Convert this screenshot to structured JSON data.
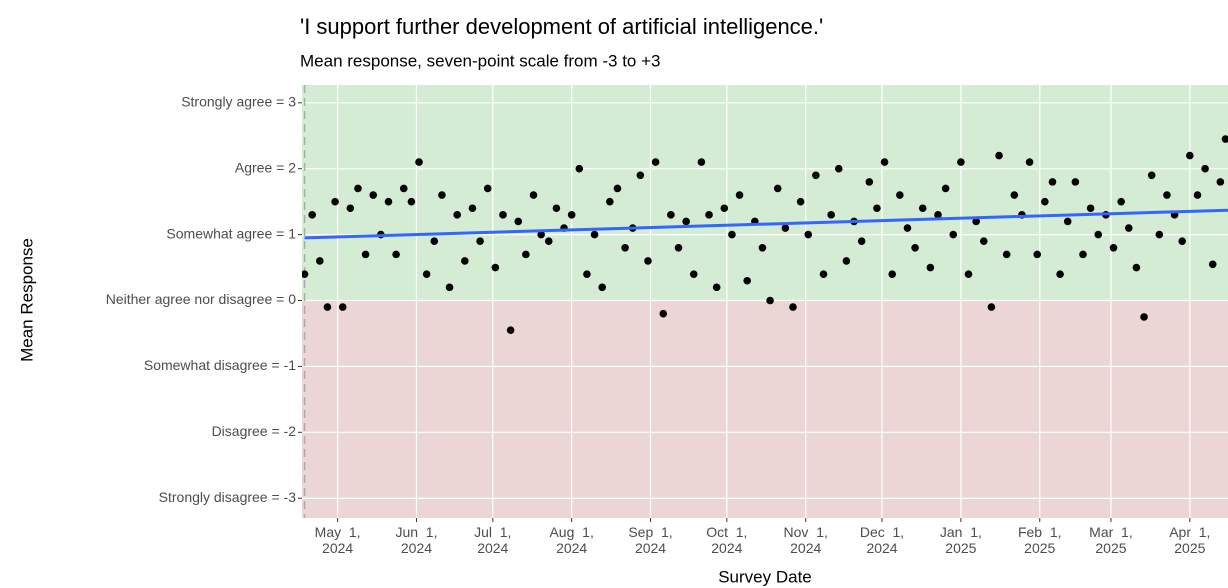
{
  "chart_data": {
    "type": "scatter",
    "title": "'I support further development of artificial intelligence.'",
    "subtitle": "Mean response, seven-point scale from -3 to +3",
    "x_label": "Survey Date",
    "y_label": "Mean Response",
    "xlim": [
      "2024-04-17",
      "2025-04-16"
    ],
    "xticks": [
      {
        "value": "2024-05-01",
        "label": "May  1,\n2024"
      },
      {
        "value": "2024-06-01",
        "label": "Jun  1,\n2024"
      },
      {
        "value": "2024-07-01",
        "label": "Jul  1,\n2024"
      },
      {
        "value": "2024-08-01",
        "label": "Aug  1,\n2024"
      },
      {
        "value": "2024-09-01",
        "label": "Sep  1,\n2024"
      },
      {
        "value": "2024-10-01",
        "label": "Oct  1,\n2024"
      },
      {
        "value": "2024-11-01",
        "label": "Nov  1,\n2024"
      },
      {
        "value": "2024-12-01",
        "label": "Dec  1,\n2024"
      },
      {
        "value": "2025-01-01",
        "label": "Jan  1,\n2025"
      },
      {
        "value": "2025-02-01",
        "label": "Feb  1,\n2025"
      },
      {
        "value": "2025-03-01",
        "label": "Mar  1,\n2025"
      },
      {
        "value": "2025-04-01",
        "label": "Apr  1,\n2025"
      }
    ],
    "ylim": [
      -3.3,
      3.27
    ],
    "yticks": [
      {
        "value": 3,
        "label": "Strongly agree = 3"
      },
      {
        "value": 2,
        "label": "Agree = 2"
      },
      {
        "value": 1,
        "label": "Somewhat agree = 1"
      },
      {
        "value": 0,
        "label": "Neither agree nor disagree = 0"
      },
      {
        "value": -1,
        "label": "Somewhat disagree = -1"
      },
      {
        "value": -2,
        "label": "Disagree = -2"
      },
      {
        "value": -3,
        "label": "Strongly disagree = -3"
      }
    ],
    "grid": true,
    "threshold": 0,
    "above_color": "#d5ecd4",
    "below_color": "#ecd5d5",
    "vline": "2024-04-18",
    "color": "#000000",
    "x": [
      "2024-04-18",
      "2024-04-21",
      "2024-04-24",
      "2024-04-27",
      "2024-04-30",
      "2024-05-03",
      "2024-05-06",
      "2024-05-09",
      "2024-05-12",
      "2024-05-15",
      "2024-05-18",
      "2024-05-21",
      "2024-05-24",
      "2024-05-27",
      "2024-05-30",
      "2024-06-02",
      "2024-06-05",
      "2024-06-08",
      "2024-06-11",
      "2024-06-14",
      "2024-06-17",
      "2024-06-20",
      "2024-06-23",
      "2024-06-26",
      "2024-06-29",
      "2024-07-02",
      "2024-07-05",
      "2024-07-08",
      "2024-07-11",
      "2024-07-14",
      "2024-07-17",
      "2024-07-20",
      "2024-07-23",
      "2024-07-26",
      "2024-07-29",
      "2024-08-01",
      "2024-08-04",
      "2024-08-07",
      "2024-08-10",
      "2024-08-13",
      "2024-08-16",
      "2024-08-19",
      "2024-08-22",
      "2024-08-25",
      "2024-08-28",
      "2024-08-31",
      "2024-09-03",
      "2024-09-06",
      "2024-09-09",
      "2024-09-12",
      "2024-09-15",
      "2024-09-18",
      "2024-09-21",
      "2024-09-24",
      "2024-09-27",
      "2024-09-30",
      "2024-10-03",
      "2024-10-06",
      "2024-10-09",
      "2024-10-12",
      "2024-10-15",
      "2024-10-18",
      "2024-10-21",
      "2024-10-24",
      "2024-10-27",
      "2024-10-30",
      "2024-11-02",
      "2024-11-05",
      "2024-11-08",
      "2024-11-11",
      "2024-11-14",
      "2024-11-17",
      "2024-11-20",
      "2024-11-23",
      "2024-11-26",
      "2024-11-29",
      "2024-12-02",
      "2024-12-05",
      "2024-12-08",
      "2024-12-11",
      "2024-12-14",
      "2024-12-17",
      "2024-12-20",
      "2024-12-23",
      "2024-12-26",
      "2024-12-29",
      "2025-01-01",
      "2025-01-04",
      "2025-01-07",
      "2025-01-10",
      "2025-01-13",
      "2025-01-16",
      "2025-01-19",
      "2025-01-22",
      "2025-01-25",
      "2025-01-28",
      "2025-01-31",
      "2025-02-03",
      "2025-02-06",
      "2025-02-09",
      "2025-02-12",
      "2025-02-15",
      "2025-02-18",
      "2025-02-21",
      "2025-02-24",
      "2025-02-27",
      "2025-03-02",
      "2025-03-05",
      "2025-03-08",
      "2025-03-11",
      "2025-03-14",
      "2025-03-17",
      "2025-03-20",
      "2025-03-23",
      "2025-03-26",
      "2025-03-29",
      "2025-04-01",
      "2025-04-04",
      "2025-04-07",
      "2025-04-10",
      "2025-04-13",
      "2025-04-15"
    ],
    "values": [
      0.4,
      1.3,
      0.6,
      -0.1,
      1.5,
      -0.1,
      1.4,
      1.7,
      0.7,
      1.6,
      1.0,
      1.5,
      0.7,
      1.7,
      1.5,
      2.1,
      0.4,
      0.9,
      1.6,
      0.2,
      1.3,
      0.6,
      1.4,
      0.9,
      1.7,
      0.5,
      1.3,
      -0.45,
      1.2,
      0.7,
      1.6,
      1.0,
      0.9,
      1.4,
      1.1,
      1.3,
      2.0,
      0.4,
      1.0,
      0.2,
      1.5,
      1.7,
      0.8,
      1.1,
      1.9,
      0.6,
      2.1,
      -0.2,
      1.3,
      0.8,
      1.2,
      0.4,
      2.1,
      1.3,
      0.2,
      1.4,
      1.0,
      1.6,
      0.3,
      1.2,
      0.8,
      0.0,
      1.7,
      1.1,
      -0.1,
      1.5,
      1.0,
      1.9,
      0.4,
      1.3,
      2.0,
      0.6,
      1.2,
      0.9,
      1.8,
      1.4,
      2.1,
      0.4,
      1.6,
      1.1,
      0.8,
      1.4,
      0.5,
      1.3,
      1.7,
      1.0,
      2.1,
      0.4,
      1.2,
      0.9,
      -0.1,
      2.2,
      0.7,
      1.6,
      1.3,
      2.1,
      0.7,
      1.5,
      1.8,
      0.4,
      1.2,
      1.8,
      0.7,
      1.4,
      1.0,
      1.3,
      0.8,
      1.5,
      1.1,
      0.5,
      -0.25,
      1.9,
      1.0,
      1.6,
      1.3,
      0.9,
      2.2,
      1.6,
      2.0,
      0.55,
      1.8,
      2.45
    ],
    "trend": {
      "color": "#3366ff",
      "x": [
        "2024-04-18",
        "2025-04-16"
      ],
      "values": [
        0.95,
        1.37
      ]
    }
  }
}
